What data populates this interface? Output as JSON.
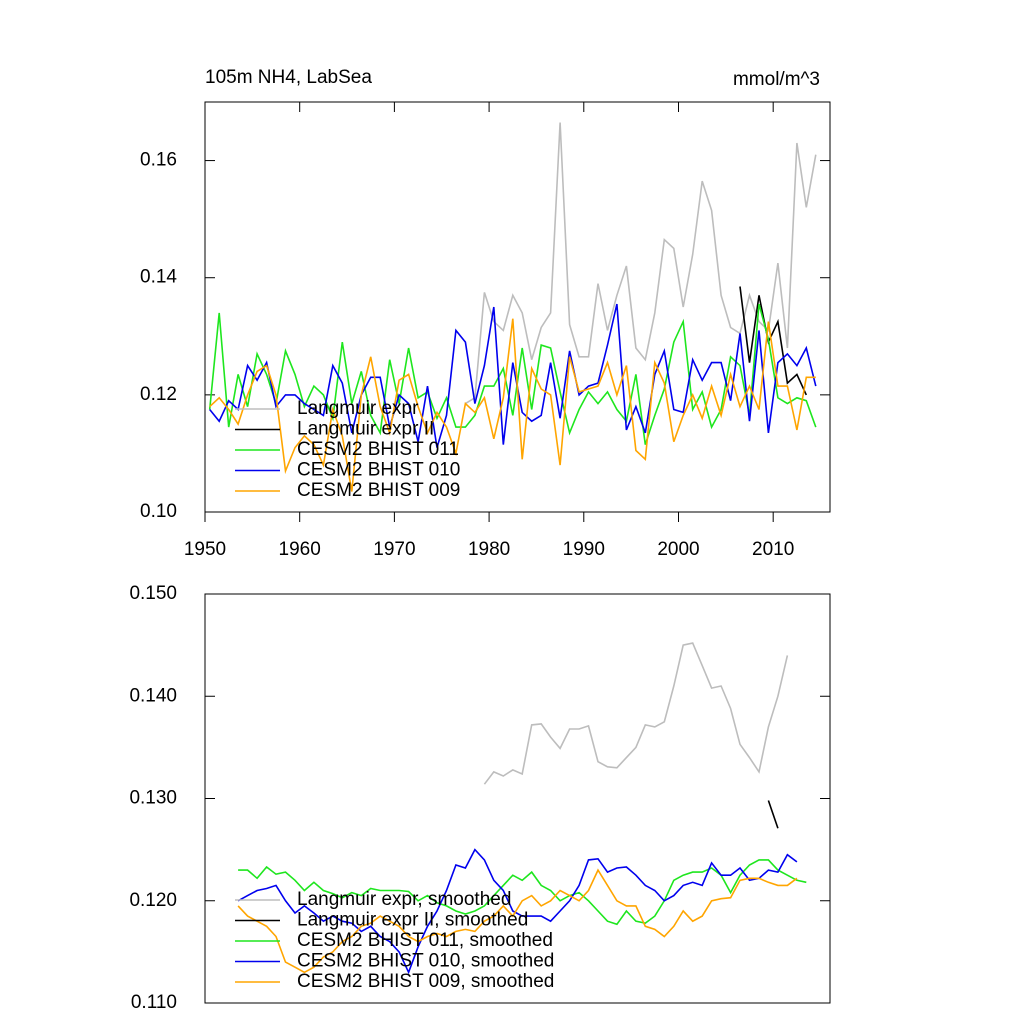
{
  "chart_data": [
    {
      "type": "line",
      "title": "105m NH4, LabSea",
      "units": "mmol/m^3",
      "legend": "lower left",
      "x": [
        1950.5,
        1951.5,
        1952.5,
        1953.5,
        1954.5,
        1955.5,
        1956.5,
        1957.5,
        1958.5,
        1959.5,
        1960.5,
        1961.5,
        1962.5,
        1963.5,
        1964.5,
        1965.5,
        1966.5,
        1967.5,
        1968.5,
        1969.5,
        1970.5,
        1971.5,
        1972.5,
        1973.5,
        1974.5,
        1975.5,
        1976.5,
        1977.5,
        1978.5,
        1979.5,
        1980.5,
        1981.5,
        1982.5,
        1983.5,
        1984.5,
        1985.5,
        1986.5,
        1987.5,
        1988.5,
        1989.5,
        1990.5,
        1991.5,
        1992.5,
        1993.5,
        1994.5,
        1995.5,
        1996.5,
        1997.5,
        1998.5,
        1999.5,
        2000.5,
        2001.5,
        2002.5,
        2003.5,
        2004.5,
        2005.5,
        2006.5,
        2007.5,
        2008.5,
        2009.5,
        2010.5,
        2011.5,
        2012.5,
        2013.5,
        2014.5
      ],
      "xlim": [
        1950,
        2016
      ],
      "xticks": [
        1950,
        1960,
        1970,
        1980,
        1990,
        2000,
        2010
      ],
      "ylim": [
        0.1,
        0.17
      ],
      "yticks": [
        {
          "value": 0.1,
          "label": "0.10"
        },
        0.12,
        0.14,
        0.16
      ],
      "series": [
        {
          "name": "Langmuir expr",
          "color": "#bdbdbd",
          "values": [
            null,
            null,
            null,
            null,
            null,
            null,
            null,
            null,
            null,
            null,
            null,
            null,
            null,
            null,
            null,
            null,
            null,
            null,
            null,
            null,
            null,
            null,
            null,
            null,
            null,
            null,
            null,
            0.1185,
            0.1195,
            0.1375,
            0.1325,
            0.131,
            0.137,
            0.134,
            0.126,
            0.1315,
            0.134,
            0.1665,
            0.132,
            0.1265,
            0.1265,
            0.139,
            0.131,
            0.137,
            0.142,
            0.128,
            0.126,
            0.134,
            0.1465,
            0.145,
            0.135,
            0.144,
            0.1565,
            0.1515,
            0.137,
            0.1315,
            0.1305,
            0.137,
            0.1325,
            0.131,
            0.1425,
            0.128,
            0.163,
            0.152,
            0.161
          ]
        },
        {
          "name": "Langmuir expr II",
          "color": "#000000",
          "values": [
            null,
            null,
            null,
            null,
            null,
            null,
            null,
            null,
            null,
            null,
            null,
            null,
            null,
            null,
            null,
            null,
            null,
            null,
            null,
            null,
            null,
            null,
            null,
            null,
            null,
            null,
            null,
            null,
            null,
            null,
            null,
            null,
            null,
            null,
            null,
            null,
            null,
            null,
            null,
            null,
            null,
            null,
            null,
            null,
            null,
            null,
            null,
            null,
            null,
            null,
            null,
            null,
            null,
            null,
            null,
            null,
            0.1385,
            0.1255,
            0.137,
            0.129,
            0.1325,
            0.122,
            0.1235,
            0.12,
            null
          ]
        },
        {
          "name": "CESM2 BHIST 011",
          "color": "#1ee61e",
          "values": [
            0.1175,
            0.134,
            0.1145,
            0.1235,
            0.118,
            0.127,
            0.1235,
            0.1185,
            0.1275,
            0.1235,
            0.118,
            0.1215,
            0.12,
            0.116,
            0.129,
            0.1185,
            0.124,
            0.1165,
            0.1135,
            0.126,
            0.1185,
            0.128,
            0.1195,
            0.1205,
            0.116,
            0.1195,
            0.1145,
            0.1145,
            0.1165,
            0.1215,
            0.1215,
            0.1245,
            0.1165,
            0.128,
            0.1175,
            0.1285,
            0.128,
            0.1205,
            0.1135,
            0.1175,
            0.1205,
            0.1185,
            0.1205,
            0.1175,
            0.1155,
            0.1235,
            0.1115,
            0.1165,
            0.121,
            0.129,
            0.1325,
            0.1175,
            0.1205,
            0.1145,
            0.1175,
            0.1265,
            0.125,
            0.1165,
            0.1355,
            0.1295,
            0.1195,
            0.1185,
            0.1195,
            0.119,
            0.1145
          ]
        },
        {
          "name": "CESM2 BHIST 010",
          "color": "#0000ee",
          "values": [
            0.1175,
            0.1155,
            0.119,
            0.1175,
            0.125,
            0.1225,
            0.1255,
            0.118,
            0.12,
            0.12,
            0.1185,
            0.1175,
            0.1165,
            0.125,
            0.122,
            0.1135,
            0.12,
            0.123,
            0.123,
            0.1145,
            0.12,
            0.1185,
            0.112,
            0.1215,
            0.111,
            0.1165,
            0.131,
            0.129,
            0.1185,
            0.125,
            0.135,
            0.1115,
            0.1255,
            0.117,
            0.1155,
            0.1165,
            0.1255,
            0.116,
            0.1275,
            0.12,
            0.1215,
            0.122,
            0.1285,
            0.1355,
            0.114,
            0.118,
            0.1135,
            0.1235,
            0.1275,
            0.1175,
            0.117,
            0.126,
            0.1225,
            0.1255,
            0.1255,
            0.119,
            0.1305,
            0.1155,
            0.131,
            0.1135,
            0.1255,
            0.127,
            0.125,
            0.128,
            0.1215
          ]
        },
        {
          "name": "CESM2 BHIST 009",
          "color": "#ffa500",
          "values": [
            0.118,
            0.1195,
            0.1175,
            0.115,
            0.12,
            0.124,
            0.125,
            0.12,
            0.107,
            0.111,
            0.113,
            0.1115,
            0.108,
            0.1175,
            0.113,
            0.1035,
            0.12,
            0.1265,
            0.118,
            0.1135,
            0.1225,
            0.1235,
            0.118,
            0.1135,
            0.117,
            0.1145,
            0.11,
            0.1185,
            0.117,
            0.1195,
            0.1125,
            0.1195,
            0.133,
            0.109,
            0.1245,
            0.121,
            0.12,
            0.108,
            0.1265,
            0.1205,
            0.121,
            0.1215,
            0.1255,
            0.12,
            0.125,
            0.1105,
            0.109,
            0.1255,
            0.122,
            0.112,
            0.1165,
            0.12,
            0.116,
            0.1215,
            0.1165,
            0.1235,
            0.118,
            0.1215,
            0.1175,
            0.1325,
            0.1215,
            0.1215,
            0.114,
            0.123,
            0.123
          ]
        }
      ]
    },
    {
      "type": "line",
      "legend": "lower left",
      "x": [
        1953.5,
        1954.5,
        1955.5,
        1956.5,
        1957.5,
        1958.5,
        1959.5,
        1960.5,
        1961.5,
        1962.5,
        1963.5,
        1964.5,
        1965.5,
        1966.5,
        1967.5,
        1968.5,
        1969.5,
        1970.5,
        1971.5,
        1972.5,
        1973.5,
        1974.5,
        1975.5,
        1976.5,
        1977.5,
        1978.5,
        1979.5,
        1980.5,
        1981.5,
        1982.5,
        1983.5,
        1984.5,
        1985.5,
        1986.5,
        1987.5,
        1988.5,
        1989.5,
        1990.5,
        1991.5,
        1992.5,
        1993.5,
        1994.5,
        1995.5,
        1996.5,
        1997.5,
        1998.5,
        1999.5,
        2000.5,
        2001.5,
        2002.5,
        2003.5,
        2004.5,
        2005.5,
        2006.5,
        2007.5,
        2008.5,
        2009.5,
        2010.5,
        2011.5,
        2012.5,
        2013.5
      ],
      "xlim": [
        1950,
        2016
      ],
      "ylim": [
        0.11,
        0.15
      ],
      "yticks": [
        {
          "value": 0.11,
          "label": "0.110"
        },
        {
          "value": 0.12,
          "label": "0.120"
        },
        {
          "value": 0.13,
          "label": "0.130"
        },
        {
          "value": 0.14,
          "label": "0.140"
        },
        {
          "value": 0.15,
          "label": "0.150"
        }
      ],
      "series": [
        {
          "name": "Langmuir expr, smoothed",
          "color": "#bdbdbd",
          "values": [
            null,
            null,
            null,
            null,
            null,
            null,
            null,
            null,
            null,
            null,
            null,
            null,
            null,
            null,
            null,
            null,
            null,
            null,
            null,
            null,
            null,
            null,
            null,
            null,
            null,
            null,
            0.1314,
            0.1326,
            0.1322,
            0.1328,
            0.1324,
            0.1372,
            0.1373,
            0.136,
            0.1349,
            0.1368,
            0.1368,
            0.1371,
            0.1336,
            0.1331,
            0.133,
            0.134,
            0.135,
            0.1372,
            0.137,
            0.1375,
            0.141,
            0.145,
            0.1452,
            0.143,
            0.1408,
            0.141,
            0.1388,
            0.1353,
            0.134,
            0.1326,
            0.137,
            0.14,
            0.144,
            null,
            null
          ]
        },
        {
          "name": "Langmuir expr II, smoothed",
          "color": "#000000",
          "values": [
            null,
            null,
            null,
            null,
            null,
            null,
            null,
            null,
            null,
            null,
            null,
            null,
            null,
            null,
            null,
            null,
            null,
            null,
            null,
            null,
            null,
            null,
            null,
            null,
            null,
            null,
            null,
            null,
            null,
            null,
            null,
            null,
            null,
            null,
            null,
            null,
            null,
            null,
            null,
            null,
            null,
            null,
            null,
            null,
            null,
            null,
            null,
            null,
            null,
            null,
            null,
            null,
            null,
            null,
            null,
            null,
            0.1298,
            0.1271,
            null,
            null,
            null
          ]
        },
        {
          "name": "CESM2 BHIST 011, smoothed",
          "color": "#1ee61e",
          "values": [
            0.123,
            0.123,
            0.1222,
            0.1233,
            0.1226,
            0.1228,
            0.122,
            0.121,
            0.1218,
            0.121,
            0.1207,
            0.1203,
            0.1208,
            0.1205,
            0.1212,
            0.121,
            0.121,
            0.121,
            0.1209,
            0.12,
            0.1205,
            0.1198,
            0.1195,
            0.119,
            0.1187,
            0.119,
            0.1195,
            0.1205,
            0.1215,
            0.1225,
            0.122,
            0.1228,
            0.1215,
            0.121,
            0.12,
            0.1205,
            0.1208,
            0.12,
            0.119,
            0.118,
            0.1177,
            0.119,
            0.118,
            0.1178,
            0.1185,
            0.12,
            0.122,
            0.1225,
            0.1228,
            0.1228,
            0.1232,
            0.1225,
            0.1208,
            0.1225,
            0.1235,
            0.124,
            0.124,
            0.123,
            0.1225,
            0.122,
            0.1218
          ]
        },
        {
          "name": "CESM2 BHIST 010, smoothed",
          "color": "#0000ee",
          "values": [
            0.12,
            0.1205,
            0.121,
            0.1212,
            0.1215,
            0.12,
            0.1188,
            0.1195,
            0.1188,
            0.118,
            0.1185,
            0.118,
            0.1178,
            0.117,
            0.1175,
            0.1165,
            0.116,
            0.115,
            0.113,
            0.1155,
            0.1175,
            0.119,
            0.121,
            0.1235,
            0.1232,
            0.125,
            0.124,
            0.122,
            0.121,
            0.119,
            0.1185,
            0.1185,
            0.1185,
            0.118,
            0.119,
            0.12,
            0.1215,
            0.124,
            0.1241,
            0.1228,
            0.1232,
            0.1233,
            0.1225,
            0.1215,
            0.121,
            0.12,
            0.1205,
            0.1215,
            0.1218,
            0.1215,
            0.1237,
            0.1225,
            0.1225,
            0.1232,
            0.122,
            0.1222,
            0.123,
            0.1228,
            0.1245,
            0.1238,
            null
          ]
        },
        {
          "name": "CESM2 BHIST 009, smoothed",
          "color": "#ffa500",
          "values": [
            0.1195,
            0.1185,
            0.118,
            0.1175,
            0.1165,
            0.114,
            0.1135,
            0.113,
            0.1135,
            0.1145,
            0.115,
            0.116,
            0.1165,
            0.1175,
            0.1178,
            0.1185,
            0.118,
            0.1175,
            0.1165,
            0.116,
            0.1165,
            0.1168,
            0.1165,
            0.117,
            0.1172,
            0.117,
            0.118,
            0.1185,
            0.1195,
            0.1185,
            0.12,
            0.1205,
            0.1195,
            0.12,
            0.121,
            0.1205,
            0.12,
            0.121,
            0.123,
            0.1215,
            0.12,
            0.1195,
            0.1195,
            0.1175,
            0.1172,
            0.1165,
            0.1175,
            0.119,
            0.118,
            0.1185,
            0.12,
            0.1202,
            0.1203,
            0.122,
            0.1222,
            0.1222,
            0.1218,
            0.1215,
            0.1215,
            0.1222,
            null
          ]
        }
      ]
    }
  ]
}
